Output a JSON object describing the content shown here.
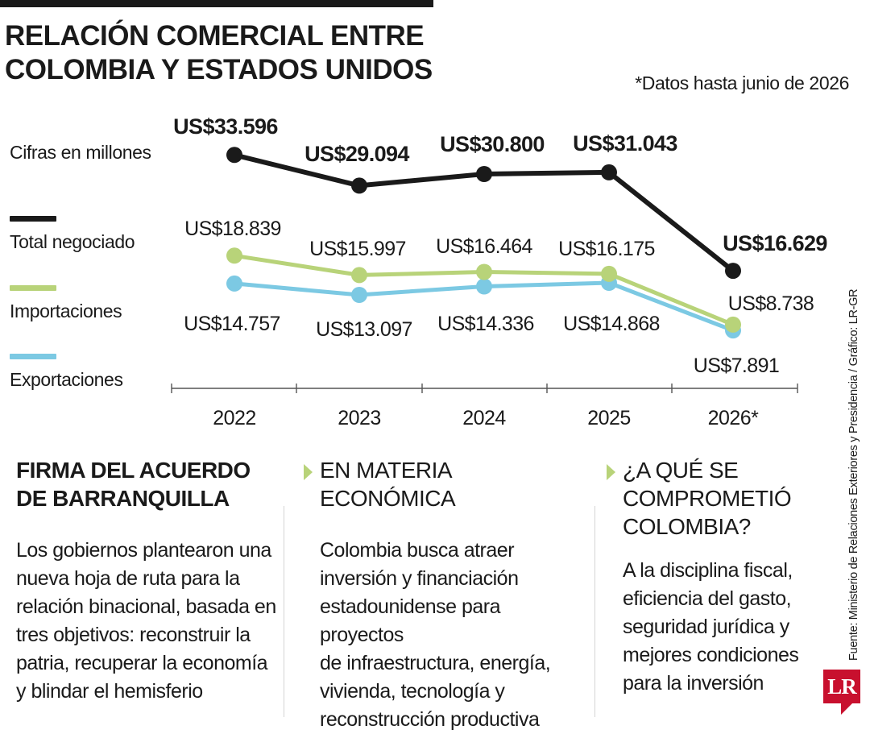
{
  "header": {
    "title_line1": "RELACIÓN COMERCIAL ENTRE",
    "title_line2": "COLOMBIA Y ESTADOS UNIDOS",
    "note": "*Datos hasta junio de 2026",
    "unit": "Cifras en millones"
  },
  "legend": [
    {
      "label": "Total negociado",
      "color": "#1a1a1a"
    },
    {
      "label": "Importaciones",
      "color": "#b8d379"
    },
    {
      "label": "Exportaciones",
      "color": "#7cc9e3"
    }
  ],
  "chart_data": {
    "type": "line",
    "x": [
      "2022",
      "2023",
      "2024",
      "2025",
      "2026*"
    ],
    "series": [
      {
        "name": "Total negociado",
        "color": "#1a1a1a",
        "values": [
          33596,
          29094,
          30800,
          31043,
          16629
        ],
        "labels": [
          "US$33.596",
          "US$29.094",
          "US$30.800",
          "US$31.043",
          "US$16.629"
        ]
      },
      {
        "name": "Importaciones",
        "color": "#b8d379",
        "values": [
          18839,
          15997,
          16464,
          16175,
          8738
        ],
        "labels": [
          "US$18.839",
          "US$15.997",
          "US$16.464",
          "US$16.175",
          "US$8.738"
        ]
      },
      {
        "name": "Exportaciones",
        "color": "#7cc9e3",
        "values": [
          14757,
          13097,
          14336,
          14868,
          7891
        ],
        "labels": [
          "US$14.757",
          "US$13.097",
          "US$14.336",
          "US$14.868",
          "US$7.891"
        ]
      }
    ],
    "xlabel": "",
    "ylabel": "",
    "grid": false,
    "legend_position": "left"
  },
  "columns": [
    {
      "heading_line1": "FIRMA DEL ACUERDO",
      "heading_line2": "DE BARRANQUILLA",
      "body": [
        "Los gobiernos plantearon una",
        "nueva hoja de ruta para la",
        "relación binacional, basada en",
        "tres objetivos: reconstruir la",
        "patria, recuperar la economía",
        "y blindar el hemisferio"
      ]
    },
    {
      "heading_line1": "EN MATERIA",
      "heading_line2": "ECONÓMICA",
      "body": [
        "Colombia busca atraer",
        "inversión y financiación",
        "estadounidense para proyectos",
        "de infraestructura, energía,",
        "vivienda, tecnología y",
        "reconstrucción productiva"
      ]
    },
    {
      "heading_line1": "¿A QUÉ SE",
      "heading_line2": "COMPROMETIÓ",
      "heading_line3": "COLOMBIA?",
      "body": [
        "A la disciplina fiscal,",
        "eficiencia del gasto,",
        "seguridad jurídica y",
        "mejores condiciones",
        "para la inversión"
      ]
    }
  ],
  "source": "Fuente: Ministerio de Relaciones Exteriores y Presidencia / Gráfico: LR-GR",
  "logo_text": "LR"
}
